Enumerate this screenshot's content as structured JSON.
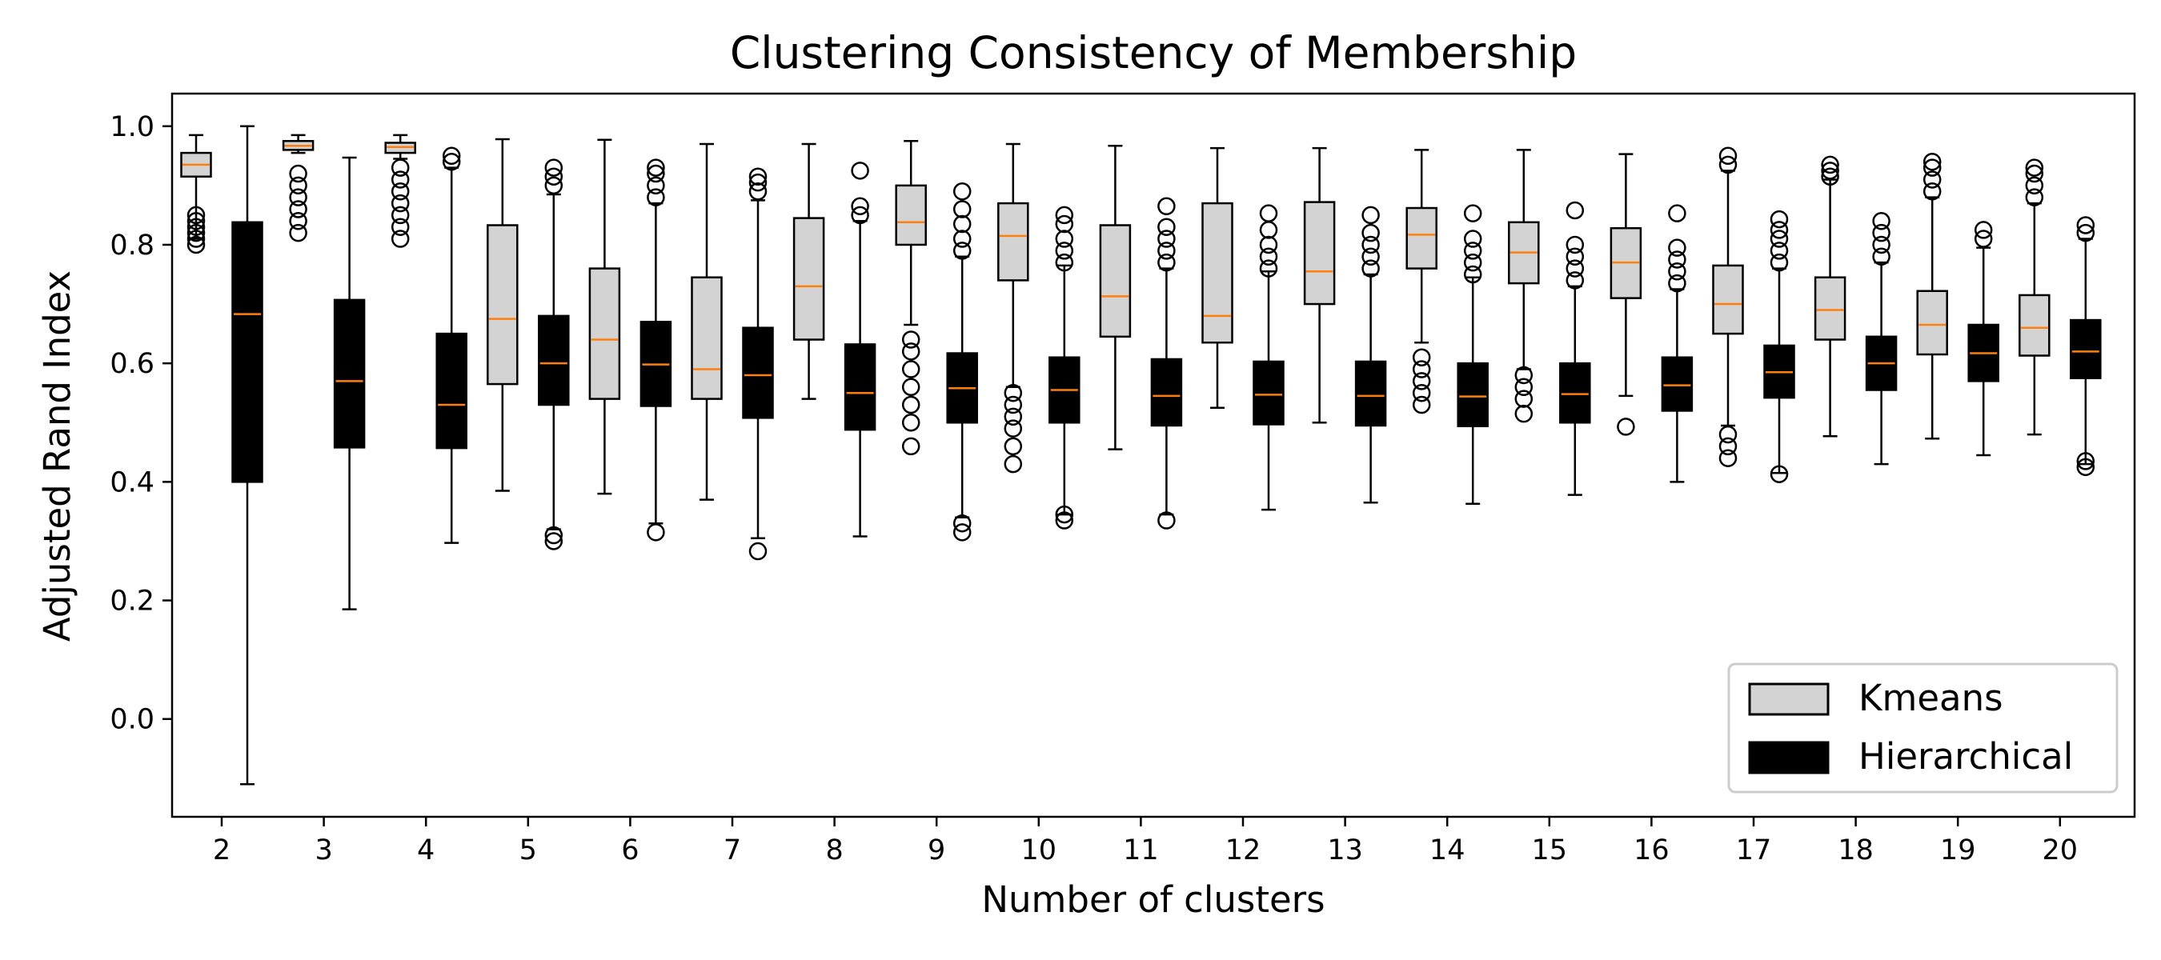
{
  "chart_data": {
    "type": "boxplot",
    "title": "Clustering Consistency of Membership",
    "xlabel": "Number of clusters",
    "ylabel": "Adjusted Rand Index",
    "ylim": [
      -0.165,
      1.055
    ],
    "yticks": [
      "0.0",
      "0.2",
      "0.4",
      "0.6",
      "0.8",
      "1.0"
    ],
    "categories": [
      "2",
      "3",
      "4",
      "5",
      "6",
      "7",
      "8",
      "9",
      "10",
      "11",
      "12",
      "13",
      "14",
      "15",
      "16",
      "17",
      "18",
      "19",
      "20"
    ],
    "grid": false,
    "legend_position": "bottom-right",
    "series": [
      {
        "name": "Kmeans",
        "box_color": "#d3d3d3",
        "median_color": "#ff7f0e",
        "boxes": [
          {
            "whislo": 0.81,
            "q1": 0.915,
            "med": 0.935,
            "q3": 0.955,
            "whishi": 0.985,
            "fliers": [
              0.8,
              0.81,
              0.82,
              0.83,
              0.84,
              0.85
            ]
          },
          {
            "whislo": 0.955,
            "q1": 0.96,
            "med": 0.967,
            "q3": 0.975,
            "whishi": 0.985,
            "fliers": [
              0.82,
              0.84,
              0.86,
              0.88,
              0.9,
              0.92
            ]
          },
          {
            "whislo": 0.945,
            "q1": 0.955,
            "med": 0.965,
            "q3": 0.972,
            "whishi": 0.985,
            "fliers": [
              0.81,
              0.83,
              0.85,
              0.87,
              0.89,
              0.91,
              0.93
            ]
          },
          {
            "whislo": 0.385,
            "q1": 0.565,
            "med": 0.675,
            "q3": 0.833,
            "whishi": 0.978,
            "fliers": []
          },
          {
            "whislo": 0.38,
            "q1": 0.54,
            "med": 0.64,
            "q3": 0.76,
            "whishi": 0.977,
            "fliers": []
          },
          {
            "whislo": 0.37,
            "q1": 0.54,
            "med": 0.59,
            "q3": 0.745,
            "whishi": 0.97,
            "fliers": []
          },
          {
            "whislo": 0.54,
            "q1": 0.64,
            "med": 0.73,
            "q3": 0.845,
            "whishi": 0.97,
            "fliers": []
          },
          {
            "whislo": 0.665,
            "q1": 0.8,
            "med": 0.838,
            "q3": 0.9,
            "whishi": 0.975,
            "fliers": [
              0.46,
              0.5,
              0.53,
              0.56,
              0.59,
              0.62,
              0.64
            ]
          },
          {
            "whislo": 0.56,
            "q1": 0.74,
            "med": 0.815,
            "q3": 0.87,
            "whishi": 0.97,
            "fliers": [
              0.43,
              0.46,
              0.49,
              0.51,
              0.53,
              0.55
            ]
          },
          {
            "whislo": 0.455,
            "q1": 0.645,
            "med": 0.713,
            "q3": 0.833,
            "whishi": 0.967,
            "fliers": []
          },
          {
            "whislo": 0.525,
            "q1": 0.635,
            "med": 0.68,
            "q3": 0.87,
            "whishi": 0.963,
            "fliers": []
          },
          {
            "whislo": 0.5,
            "q1": 0.7,
            "med": 0.755,
            "q3": 0.872,
            "whishi": 0.963,
            "fliers": []
          },
          {
            "whislo": 0.635,
            "q1": 0.76,
            "med": 0.817,
            "q3": 0.862,
            "whishi": 0.96,
            "fliers": [
              0.53,
              0.55,
              0.57,
              0.59,
              0.61
            ]
          },
          {
            "whislo": 0.59,
            "q1": 0.735,
            "med": 0.787,
            "q3": 0.838,
            "whishi": 0.96,
            "fliers": [
              0.515,
              0.54,
              0.56,
              0.58
            ]
          },
          {
            "whislo": 0.545,
            "q1": 0.71,
            "med": 0.77,
            "q3": 0.828,
            "whishi": 0.953,
            "fliers": [
              0.493
            ]
          },
          {
            "whislo": 0.495,
            "q1": 0.65,
            "med": 0.7,
            "q3": 0.765,
            "whishi": 0.925,
            "fliers": [
              0.44,
              0.46,
              0.48,
              0.935,
              0.95
            ]
          },
          {
            "whislo": 0.477,
            "q1": 0.64,
            "med": 0.69,
            "q3": 0.745,
            "whishi": 0.91,
            "fliers": [
              0.915,
              0.925,
              0.935
            ]
          },
          {
            "whislo": 0.473,
            "q1": 0.615,
            "med": 0.665,
            "q3": 0.722,
            "whishi": 0.88,
            "fliers": [
              0.89,
              0.91,
              0.93,
              0.94
            ]
          },
          {
            "whislo": 0.48,
            "q1": 0.613,
            "med": 0.66,
            "q3": 0.715,
            "whishi": 0.87,
            "fliers": [
              0.88,
              0.9,
              0.92,
              0.93
            ]
          }
        ]
      },
      {
        "name": "Hierarchical",
        "box_color": "#000000",
        "median_color": "#ff7f0e",
        "boxes": [
          {
            "whislo": -0.11,
            "q1": 0.4,
            "med": 0.683,
            "q3": 0.838,
            "whishi": 1.0,
            "fliers": []
          },
          {
            "whislo": 0.185,
            "q1": 0.458,
            "med": 0.57,
            "q3": 0.707,
            "whishi": 0.947,
            "fliers": []
          },
          {
            "whislo": 0.297,
            "q1": 0.457,
            "med": 0.53,
            "q3": 0.65,
            "whishi": 0.93,
            "fliers": [
              0.94,
              0.95
            ]
          },
          {
            "whislo": 0.32,
            "q1": 0.53,
            "med": 0.6,
            "q3": 0.68,
            "whishi": 0.885,
            "fliers": [
              0.3,
              0.31,
              0.9,
              0.915,
              0.93
            ]
          },
          {
            "whislo": 0.33,
            "q1": 0.528,
            "med": 0.598,
            "q3": 0.67,
            "whishi": 0.87,
            "fliers": [
              0.315,
              0.88,
              0.9,
              0.92,
              0.93
            ]
          },
          {
            "whislo": 0.305,
            "q1": 0.508,
            "med": 0.58,
            "q3": 0.66,
            "whishi": 0.875,
            "fliers": [
              0.283,
              0.89,
              0.905,
              0.915
            ]
          },
          {
            "whislo": 0.308,
            "q1": 0.488,
            "med": 0.55,
            "q3": 0.632,
            "whishi": 0.84,
            "fliers": [
              0.85,
              0.865,
              0.925
            ]
          },
          {
            "whislo": 0.34,
            "q1": 0.5,
            "med": 0.558,
            "q3": 0.617,
            "whishi": 0.78,
            "fliers": [
              0.315,
              0.33,
              0.79,
              0.81,
              0.835,
              0.86,
              0.89
            ]
          },
          {
            "whislo": 0.345,
            "q1": 0.5,
            "med": 0.555,
            "q3": 0.61,
            "whishi": 0.765,
            "fliers": [
              0.335,
              0.345,
              0.77,
              0.79,
              0.81,
              0.835,
              0.85
            ]
          },
          {
            "whislo": 0.345,
            "q1": 0.495,
            "med": 0.545,
            "q3": 0.607,
            "whishi": 0.76,
            "fliers": [
              0.335,
              0.77,
              0.79,
              0.81,
              0.83,
              0.865
            ]
          },
          {
            "whislo": 0.353,
            "q1": 0.497,
            "med": 0.547,
            "q3": 0.603,
            "whishi": 0.755,
            "fliers": [
              0.76,
              0.78,
              0.8,
              0.825,
              0.853
            ]
          },
          {
            "whislo": 0.365,
            "q1": 0.495,
            "med": 0.545,
            "q3": 0.603,
            "whishi": 0.75,
            "fliers": [
              0.76,
              0.78,
              0.8,
              0.82,
              0.85
            ]
          },
          {
            "whislo": 0.363,
            "q1": 0.494,
            "med": 0.544,
            "q3": 0.6,
            "whishi": 0.745,
            "fliers": [
              0.75,
              0.77,
              0.79,
              0.81,
              0.853
            ]
          },
          {
            "whislo": 0.378,
            "q1": 0.5,
            "med": 0.548,
            "q3": 0.6,
            "whishi": 0.73,
            "fliers": [
              0.74,
              0.76,
              0.78,
              0.8,
              0.858
            ]
          },
          {
            "whislo": 0.4,
            "q1": 0.52,
            "med": 0.563,
            "q3": 0.61,
            "whishi": 0.725,
            "fliers": [
              0.735,
              0.755,
              0.775,
              0.795,
              0.853
            ]
          },
          {
            "whislo": 0.415,
            "q1": 0.542,
            "med": 0.585,
            "q3": 0.63,
            "whishi": 0.76,
            "fliers": [
              0.413,
              0.77,
              0.79,
              0.81,
              0.825,
              0.843
            ]
          },
          {
            "whislo": 0.43,
            "q1": 0.555,
            "med": 0.6,
            "q3": 0.645,
            "whishi": 0.77,
            "fliers": [
              0.78,
              0.8,
              0.82,
              0.84
            ]
          },
          {
            "whislo": 0.445,
            "q1": 0.57,
            "med": 0.617,
            "q3": 0.665,
            "whishi": 0.795,
            "fliers": [
              0.81,
              0.825
            ]
          },
          {
            "whislo": 0.43,
            "q1": 0.575,
            "med": 0.62,
            "q3": 0.673,
            "whishi": 0.81,
            "fliers": [
              0.425,
              0.435,
              0.82,
              0.833
            ]
          }
        ]
      }
    ]
  }
}
